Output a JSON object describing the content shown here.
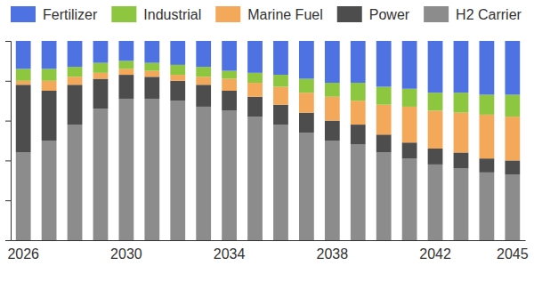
{
  "chart_data": {
    "type": "bar",
    "stacked": true,
    "legend": "top",
    "tick_labels": "x",
    "categories": [
      "2026",
      null,
      null,
      null,
      "2030",
      null,
      null,
      null,
      "2034",
      null,
      null,
      null,
      "2038",
      null,
      null,
      null,
      "2042",
      null,
      null,
      "2045"
    ],
    "series": [
      {
        "name": "Fertilizer",
        "color": "#4f72e3",
        "values": [
          14,
          14,
          13,
          11,
          10,
          11,
          12,
          13,
          15,
          16,
          17,
          19,
          21,
          21,
          23,
          24,
          26,
          26,
          27,
          27
        ]
      },
      {
        "name": "Industrial",
        "color": "#8dc63f",
        "values": [
          6,
          6,
          5,
          5,
          4,
          4,
          5,
          5,
          4,
          5,
          6,
          7,
          7,
          9,
          9,
          9,
          9,
          10,
          10,
          11
        ]
      },
      {
        "name": "Marine Fuel",
        "color": "#f4a95a",
        "values": [
          2,
          5,
          4,
          3,
          3,
          3,
          3,
          4,
          6,
          7,
          9,
          10,
          12,
          12,
          15,
          18,
          19,
          20,
          22,
          22
        ]
      },
      {
        "name": "Power",
        "color": "#4d4d4d",
        "values": [
          34,
          25,
          20,
          15,
          12,
          11,
          10,
          11,
          10,
          10,
          10,
          10,
          10,
          10,
          9,
          8,
          8,
          8,
          7,
          7
        ]
      },
      {
        "name": "H2 Carrier",
        "color": "#8c8c8c",
        "values": [
          44,
          50,
          58,
          66,
          71,
          71,
          70,
          67,
          65,
          62,
          58,
          54,
          50,
          48,
          44,
          41,
          38,
          36,
          34,
          33
        ]
      }
    ],
    "ylim": [
      0,
      100
    ],
    "yticks": [
      0,
      20,
      40,
      60,
      80,
      100
    ]
  }
}
